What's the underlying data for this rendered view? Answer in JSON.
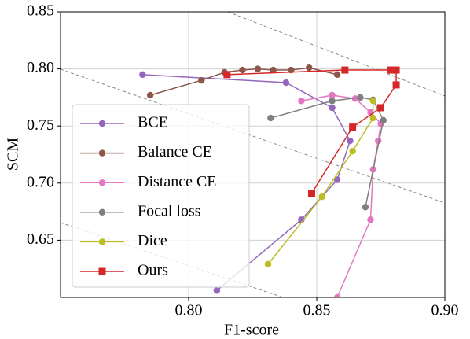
{
  "chart_data": {
    "type": "line",
    "xlabel": "F1-score",
    "ylabel": "SCM",
    "xlim": [
      0.75,
      0.9
    ],
    "ylim": [
      0.6,
      0.85
    ],
    "xticks": [
      {
        "value": 0.8,
        "label": "0.80"
      },
      0.85,
      {
        "value": 0.9,
        "label": "0.90"
      }
    ],
    "yticks": [
      0.65,
      {
        "value": 0.7,
        "label": "0.70"
      },
      0.75,
      {
        "value": 0.8,
        "label": "0.80"
      },
      0.85
    ],
    "grid": true,
    "legend": "center left",
    "series": [
      {
        "name": "BCE",
        "color": "#9467bd",
        "marker": "circle",
        "x": [
          0.782,
          0.838,
          0.856,
          0.863,
          0.858,
          0.844,
          0.811
        ],
        "values": [
          0.795,
          0.788,
          0.766,
          0.737,
          0.703,
          0.668,
          0.606
        ]
      },
      {
        "name": "Balance CE",
        "color": "#8c564b",
        "marker": "circle",
        "x": [
          0.785,
          0.805,
          0.814,
          0.821,
          0.827,
          0.833,
          0.84,
          0.847,
          0.858
        ],
        "values": [
          0.777,
          0.79,
          0.797,
          0.799,
          0.8,
          0.799,
          0.799,
          0.801,
          0.795
        ]
      },
      {
        "name": "Distance CE",
        "color": "#e377c2",
        "marker": "circle",
        "x": [
          0.844,
          0.856,
          0.865,
          0.871,
          0.875,
          0.874,
          0.872,
          0.871,
          0.858
        ],
        "values": [
          0.772,
          0.777,
          0.774,
          0.762,
          0.752,
          0.737,
          0.712,
          0.668,
          0.6
        ]
      },
      {
        "name": "Focal loss",
        "color": "#7f7f7f",
        "marker": "circle",
        "x": [
          0.832,
          0.856,
          0.867,
          0.872,
          0.876,
          0.869
        ],
        "values": [
          0.757,
          0.772,
          0.775,
          0.773,
          0.755,
          0.679
        ]
      },
      {
        "name": "Dice",
        "color": "#bcbd22",
        "marker": "circle",
        "x": [
          0.872,
          0.872,
          0.864,
          0.852,
          0.831
        ],
        "values": [
          0.772,
          0.757,
          0.728,
          0.688,
          0.629
        ]
      },
      {
        "name": "Ours",
        "color": "#d62728",
        "marker": "square",
        "x": [
          0.815,
          0.861,
          0.879,
          0.881,
          0.881,
          0.875,
          0.864,
          0.848
        ],
        "values": [
          0.795,
          0.799,
          0.799,
          0.799,
          0.786,
          0.766,
          0.749,
          0.691
        ]
      }
    ]
  }
}
